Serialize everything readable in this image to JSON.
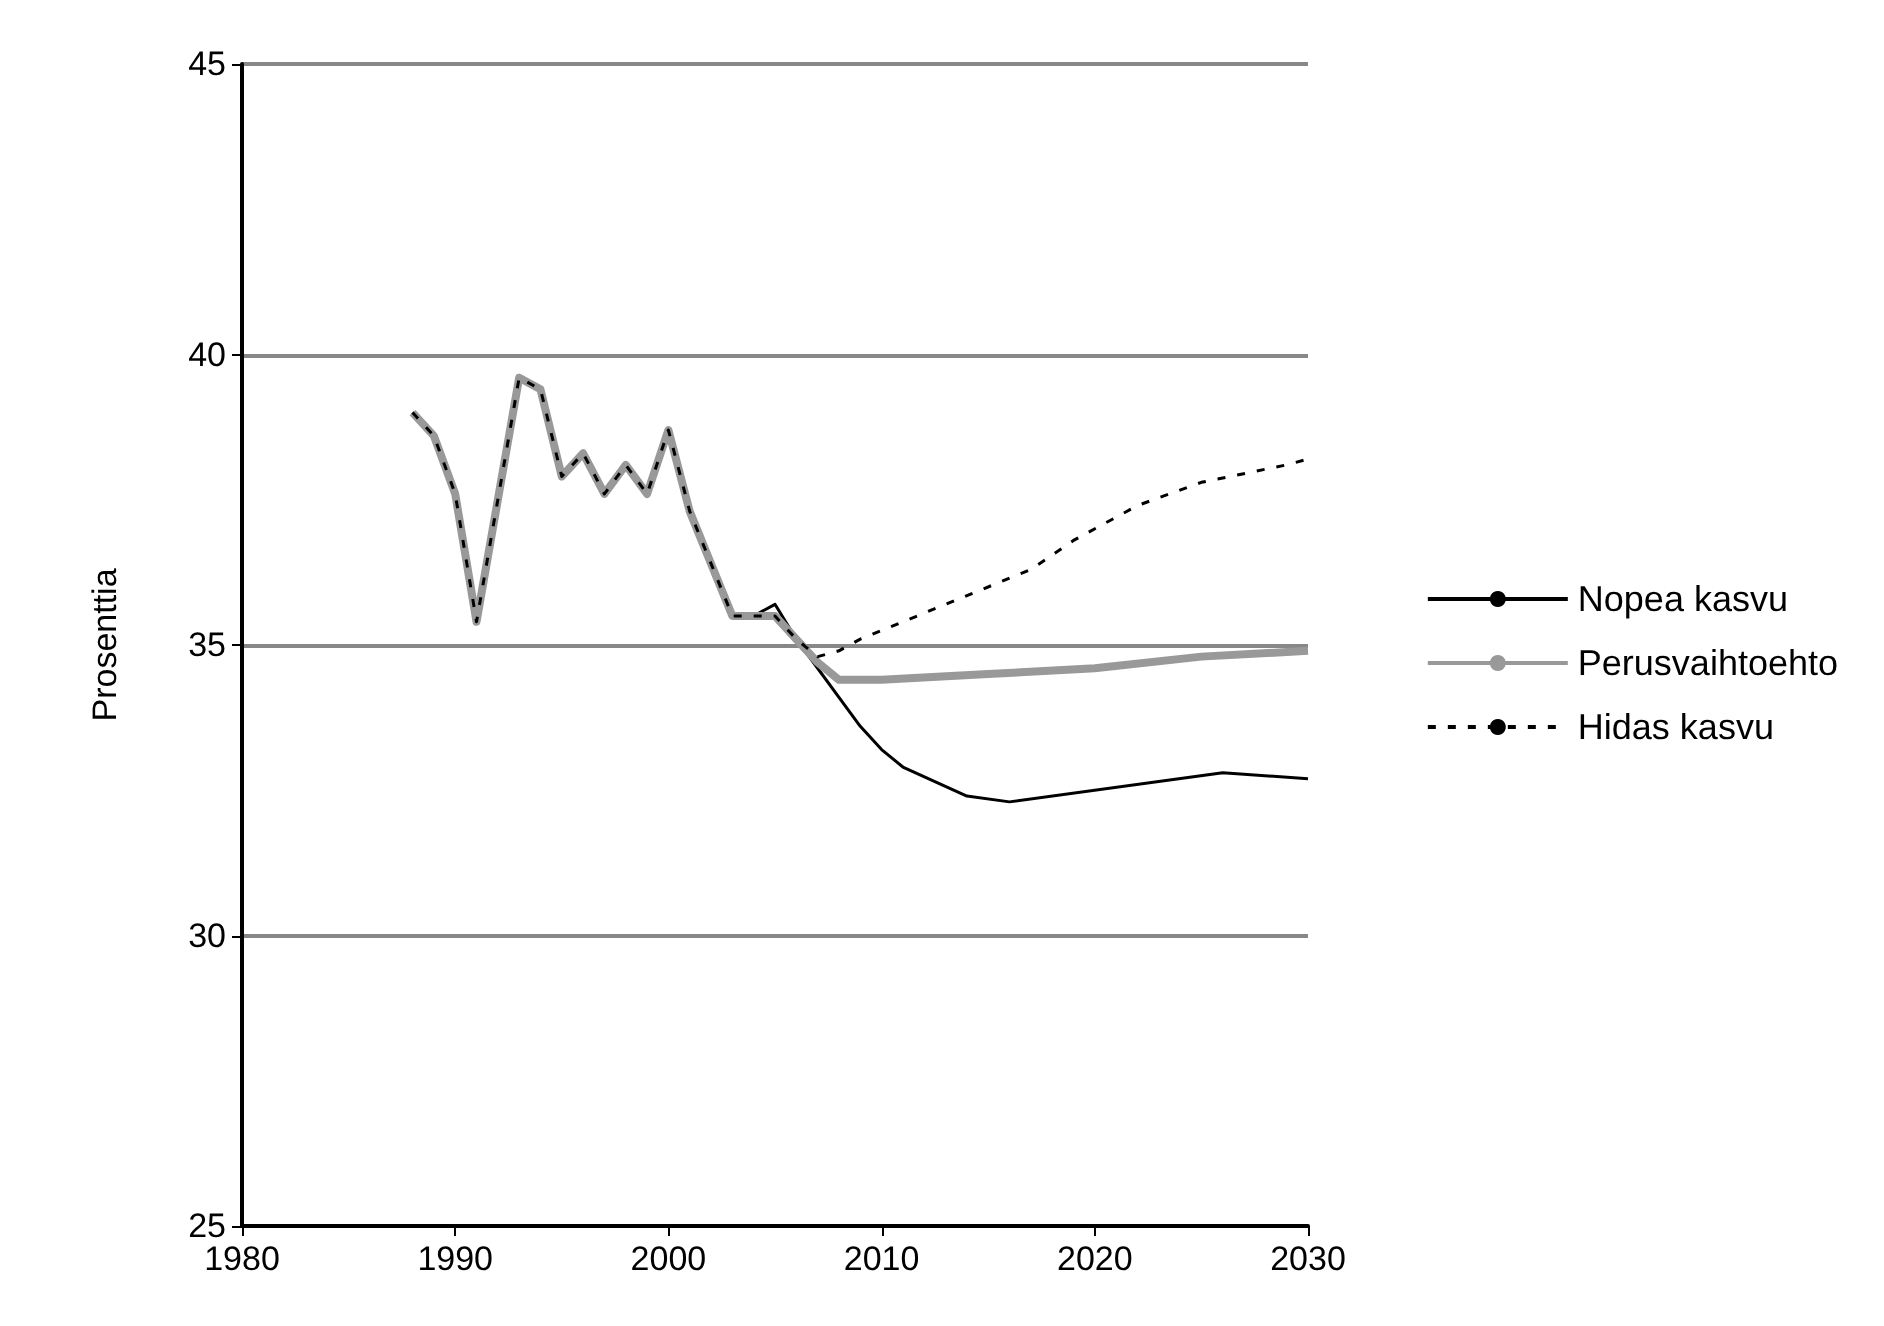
{
  "chart_data": {
    "type": "line",
    "ylabel": "Prosenttia",
    "xlim": [
      1980,
      2030
    ],
    "xticks": [
      1980,
      1990,
      2000,
      2010,
      2020,
      2030
    ],
    "ylim": [
      25,
      45
    ],
    "yticks": [
      25,
      30,
      35,
      40,
      45
    ],
    "grid": "y",
    "legend": "right",
    "marker": "none",
    "series": [
      {
        "name": "Nopea kasvu",
        "color": "#000000",
        "line_style": "solid",
        "x": [
          1988,
          1989,
          1990,
          1991,
          1992,
          1993,
          1994,
          1995,
          1996,
          1997,
          1998,
          1999,
          2000,
          2001,
          2002,
          2003,
          2004,
          2005,
          2006,
          2007,
          2008,
          2009,
          2010,
          2011,
          2014,
          2016,
          2026,
          2030
        ],
        "values": [
          39.0,
          38.6,
          37.6,
          35.4,
          37.5,
          39.6,
          39.4,
          37.9,
          38.3,
          37.6,
          38.1,
          37.6,
          38.7,
          37.3,
          36.4,
          35.5,
          35.5,
          35.7,
          35.1,
          34.6,
          34.1,
          33.6,
          33.2,
          32.9,
          32.4,
          32.3,
          32.8,
          32.7
        ]
      },
      {
        "name": "Perusvaihtoehto",
        "color": "#999999",
        "line_style": "solid",
        "x": [
          1988,
          1989,
          1990,
          1991,
          1992,
          1993,
          1994,
          1995,
          1996,
          1997,
          1998,
          1999,
          2000,
          2001,
          2002,
          2003,
          2004,
          2005,
          2006,
          2007,
          2008,
          2009,
          2010,
          2015,
          2020,
          2025,
          2030
        ],
        "values": [
          39.0,
          38.6,
          37.6,
          35.4,
          37.5,
          39.6,
          39.4,
          37.9,
          38.3,
          37.6,
          38.1,
          37.6,
          38.7,
          37.3,
          36.4,
          35.5,
          35.5,
          35.5,
          35.1,
          34.7,
          34.4,
          34.4,
          34.4,
          34.5,
          34.6,
          34.8,
          34.9
        ]
      },
      {
        "name": "Hidas kasvu",
        "color": "#000000",
        "line_style": "dashed",
        "x": [
          1988,
          1989,
          1990,
          1991,
          1992,
          1993,
          1994,
          1995,
          1996,
          1997,
          1998,
          1999,
          2000,
          2001,
          2002,
          2003,
          2004,
          2005,
          2006,
          2007,
          2008,
          2009,
          2013,
          2017,
          2019,
          2022,
          2025,
          2029,
          2030
        ],
        "values": [
          39.0,
          38.6,
          37.6,
          35.4,
          37.5,
          39.6,
          39.4,
          37.9,
          38.3,
          37.6,
          38.1,
          37.6,
          38.7,
          37.3,
          36.4,
          35.5,
          35.5,
          35.5,
          35.1,
          34.8,
          34.9,
          35.1,
          35.7,
          36.3,
          36.8,
          37.4,
          37.8,
          38.1,
          38.2
        ]
      }
    ]
  }
}
